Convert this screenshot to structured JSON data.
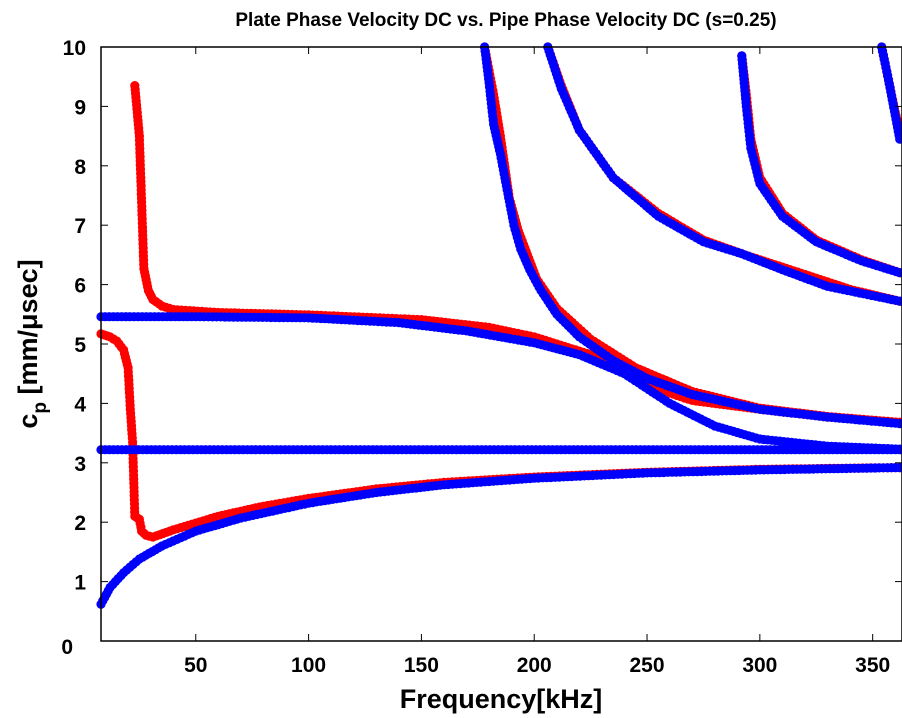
{
  "chart_data": {
    "type": "scatter",
    "title": "Plate Phase Velocity DC vs. Pipe Phase Velocity DC (s=0.25)",
    "xlabel": "Frequency[kHz]",
    "ylabel": {
      "main": "c",
      "sub": "p",
      "unit": " [mm/μsec]"
    },
    "xlim": [
      8,
      363
    ],
    "ylim": [
      0,
      10
    ],
    "x_ticks": [
      "50",
      "100",
      "150",
      "200",
      "250",
      "300",
      "350"
    ],
    "y_ticks": [
      "0",
      "1",
      "2",
      "3",
      "4",
      "5",
      "6",
      "7",
      "8",
      "9",
      "10"
    ],
    "grid": false,
    "legend": "none",
    "colors": {
      "red": "#ff0000",
      "blue": "#0000ff"
    },
    "series": [
      {
        "color": "red",
        "line": true,
        "points": [
          [
            8,
            5.17
          ],
          [
            12,
            5.12
          ],
          [
            15,
            5.05
          ],
          [
            18,
            4.9
          ],
          [
            20,
            4.6
          ],
          [
            21,
            3.9
          ],
          [
            22,
            3.35
          ],
          [
            23,
            2.1
          ],
          [
            25,
            2.05
          ],
          [
            26,
            1.85
          ],
          [
            28,
            1.78
          ],
          [
            31,
            1.75
          ],
          [
            40,
            1.87
          ],
          [
            60,
            2.1
          ],
          [
            80,
            2.27
          ],
          [
            100,
            2.4
          ],
          [
            130,
            2.56
          ],
          [
            160,
            2.67
          ],
          [
            200,
            2.76
          ],
          [
            250,
            2.84
          ],
          [
            300,
            2.89
          ],
          [
            362,
            2.92
          ]
        ]
      },
      {
        "color": "red",
        "line": true,
        "points": [
          [
            23,
            9.35
          ],
          [
            25,
            8.5
          ],
          [
            27,
            6.27
          ],
          [
            29,
            5.9
          ],
          [
            31,
            5.75
          ],
          [
            35,
            5.64
          ],
          [
            40,
            5.58
          ],
          [
            60,
            5.53
          ],
          [
            100,
            5.49
          ],
          [
            150,
            5.41
          ],
          [
            180,
            5.28
          ],
          [
            200,
            5.12
          ],
          [
            225,
            4.82
          ],
          [
            250,
            4.3
          ],
          [
            270,
            4.05
          ],
          [
            300,
            3.9
          ],
          [
            330,
            3.77
          ],
          [
            362,
            3.68
          ]
        ]
      },
      {
        "color": "red",
        "line": true,
        "points": [
          [
            178,
            10.0
          ],
          [
            182,
            9.2
          ],
          [
            185,
            8.5
          ],
          [
            189,
            7.45
          ],
          [
            193,
            6.9
          ],
          [
            197,
            6.5
          ],
          [
            201,
            6.1
          ],
          [
            210,
            5.6
          ],
          [
            225,
            5.08
          ],
          [
            245,
            4.6
          ],
          [
            270,
            4.2
          ],
          [
            300,
            3.92
          ],
          [
            330,
            3.78
          ],
          [
            362,
            3.68
          ]
        ]
      },
      {
        "color": "red",
        "line": true,
        "points": [
          [
            206,
            10.0
          ],
          [
            212,
            9.35
          ],
          [
            220,
            8.6
          ],
          [
            235,
            7.8
          ],
          [
            255,
            7.2
          ],
          [
            275,
            6.75
          ],
          [
            295,
            6.48
          ],
          [
            320,
            6.17
          ],
          [
            340,
            5.92
          ],
          [
            362,
            5.72
          ]
        ]
      },
      {
        "color": "red",
        "line": true,
        "points": [
          [
            292,
            9.85
          ],
          [
            294,
            9.2
          ],
          [
            296,
            8.45
          ],
          [
            300,
            7.8
          ],
          [
            310,
            7.2
          ],
          [
            325,
            6.75
          ],
          [
            345,
            6.42
          ],
          [
            362,
            6.2
          ]
        ]
      },
      {
        "color": "red",
        "line": true,
        "points": [
          [
            354,
            10.0
          ],
          [
            357,
            9.45
          ],
          [
            360,
            8.9
          ],
          [
            362,
            8.6
          ]
        ]
      },
      {
        "color": "blue",
        "line": false,
        "points": [
          [
            8,
            0.62
          ],
          [
            12,
            0.9
          ],
          [
            18,
            1.15
          ],
          [
            25,
            1.38
          ],
          [
            35,
            1.6
          ],
          [
            50,
            1.85
          ],
          [
            70,
            2.07
          ],
          [
            100,
            2.32
          ],
          [
            130,
            2.5
          ],
          [
            160,
            2.63
          ],
          [
            200,
            2.74
          ],
          [
            250,
            2.83
          ],
          [
            300,
            2.88
          ],
          [
            362,
            2.92
          ]
        ]
      },
      {
        "color": "blue",
        "line": false,
        "points": [
          [
            8,
            3.22
          ],
          [
            362,
            3.22
          ]
        ]
      },
      {
        "color": "blue",
        "line": false,
        "points": [
          [
            8,
            5.46
          ],
          [
            50,
            5.46
          ],
          [
            100,
            5.44
          ],
          [
            140,
            5.36
          ],
          [
            170,
            5.22
          ],
          [
            200,
            5.02
          ],
          [
            220,
            4.82
          ],
          [
            240,
            4.5
          ],
          [
            260,
            4.0
          ],
          [
            280,
            3.62
          ],
          [
            300,
            3.4
          ],
          [
            330,
            3.28
          ],
          [
            362,
            3.23
          ]
        ]
      },
      {
        "color": "blue",
        "line": false,
        "points": [
          [
            178,
            10.0
          ],
          [
            180,
            9.4
          ],
          [
            182,
            8.7
          ],
          [
            185,
            8.2
          ],
          [
            188,
            7.6
          ],
          [
            191,
            7.0
          ],
          [
            194,
            6.6
          ],
          [
            198,
            6.25
          ],
          [
            203,
            5.9
          ],
          [
            210,
            5.5
          ],
          [
            220,
            5.12
          ],
          [
            235,
            4.72
          ],
          [
            250,
            4.42
          ],
          [
            270,
            4.15
          ],
          [
            300,
            3.9
          ],
          [
            330,
            3.77
          ],
          [
            362,
            3.66
          ]
        ]
      },
      {
        "color": "blue",
        "line": false,
        "points": [
          [
            206,
            10.0
          ],
          [
            212,
            9.3
          ],
          [
            220,
            8.6
          ],
          [
            235,
            7.8
          ],
          [
            255,
            7.15
          ],
          [
            275,
            6.72
          ],
          [
            292,
            6.52
          ],
          [
            310,
            6.25
          ],
          [
            330,
            5.97
          ],
          [
            362,
            5.72
          ]
        ]
      },
      {
        "color": "blue",
        "line": false,
        "points": [
          [
            292,
            9.85
          ],
          [
            294,
            9.0
          ],
          [
            296,
            8.3
          ],
          [
            300,
            7.7
          ],
          [
            310,
            7.15
          ],
          [
            325,
            6.72
          ],
          [
            345,
            6.4
          ],
          [
            362,
            6.2
          ]
        ]
      },
      {
        "color": "blue",
        "line": false,
        "points": [
          [
            354,
            10.0
          ],
          [
            357,
            9.45
          ],
          [
            360,
            8.85
          ],
          [
            362,
            8.45
          ]
        ]
      }
    ]
  }
}
